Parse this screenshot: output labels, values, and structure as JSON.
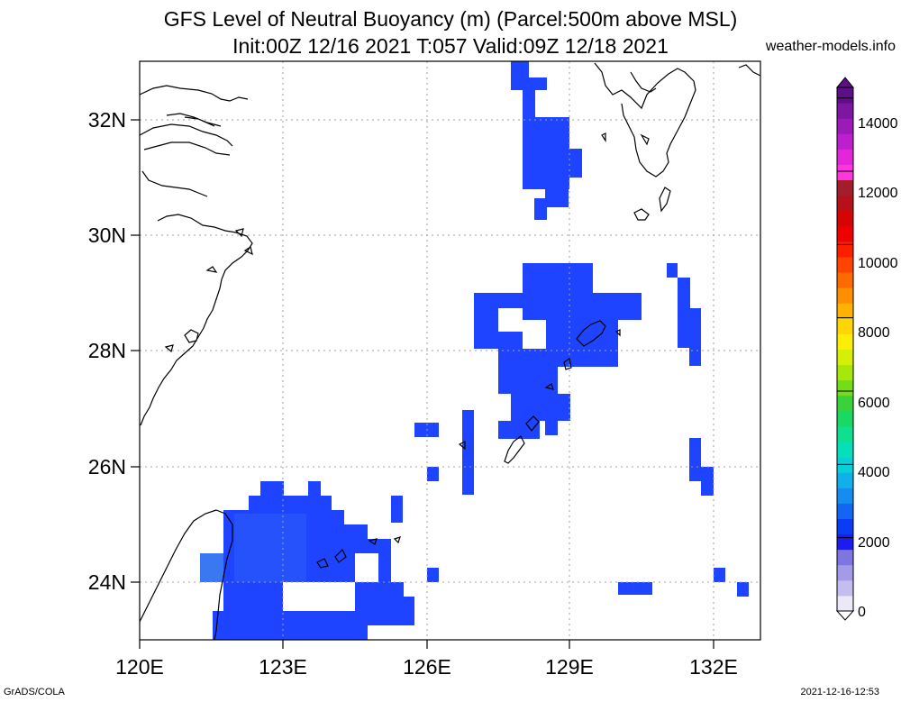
{
  "header": {
    "title_line1": "GFS Level of Neutral Buoyancy (m) (Parcel:500m above MSL)",
    "title_line2": "Init:00Z 12/16 2021 T:057 Valid:09Z 12/18 2021",
    "site": "weather-models.info"
  },
  "footer": {
    "left": "GrADS/COLA",
    "right": "2021-12-16-12:53"
  },
  "map": {
    "lon_range": [
      120,
      133
    ],
    "lat_range": [
      23,
      33
    ],
    "lon_ticks": [
      "120E",
      "123E",
      "126E",
      "129E",
      "132E"
    ],
    "lat_ticks": [
      "32N",
      "30N",
      "28N",
      "26N",
      "24N"
    ],
    "grid": true,
    "field_color": "#1f44ff",
    "coast_color": "#000000"
  },
  "colorbar": {
    "labels": [
      "0",
      "2000",
      "4000",
      "6000",
      "8000",
      "10000",
      "12000",
      "14000"
    ],
    "colors": [
      "#ece8f8",
      "#c4bef0",
      "#a39be8",
      "#7e75e0",
      "#1c1cf0",
      "#0a3cf5",
      "#1565f5",
      "#168bf0",
      "#11b0ea",
      "#08cfd8",
      "#06e0ba",
      "#0ee090",
      "#19d964",
      "#3ad23a",
      "#76dc18",
      "#a7e70b",
      "#d6ef08",
      "#fbef07",
      "#ffd605",
      "#ffb300",
      "#ff8f00",
      "#ff6a00",
      "#ff4300",
      "#fb1f00",
      "#ef0000",
      "#d60404",
      "#b8101a",
      "#a41d2b",
      "#ff36dc",
      "#e326d8",
      "#bd1fce",
      "#9c1ab7",
      "#7d16a0",
      "#5e0f87"
    ]
  }
}
